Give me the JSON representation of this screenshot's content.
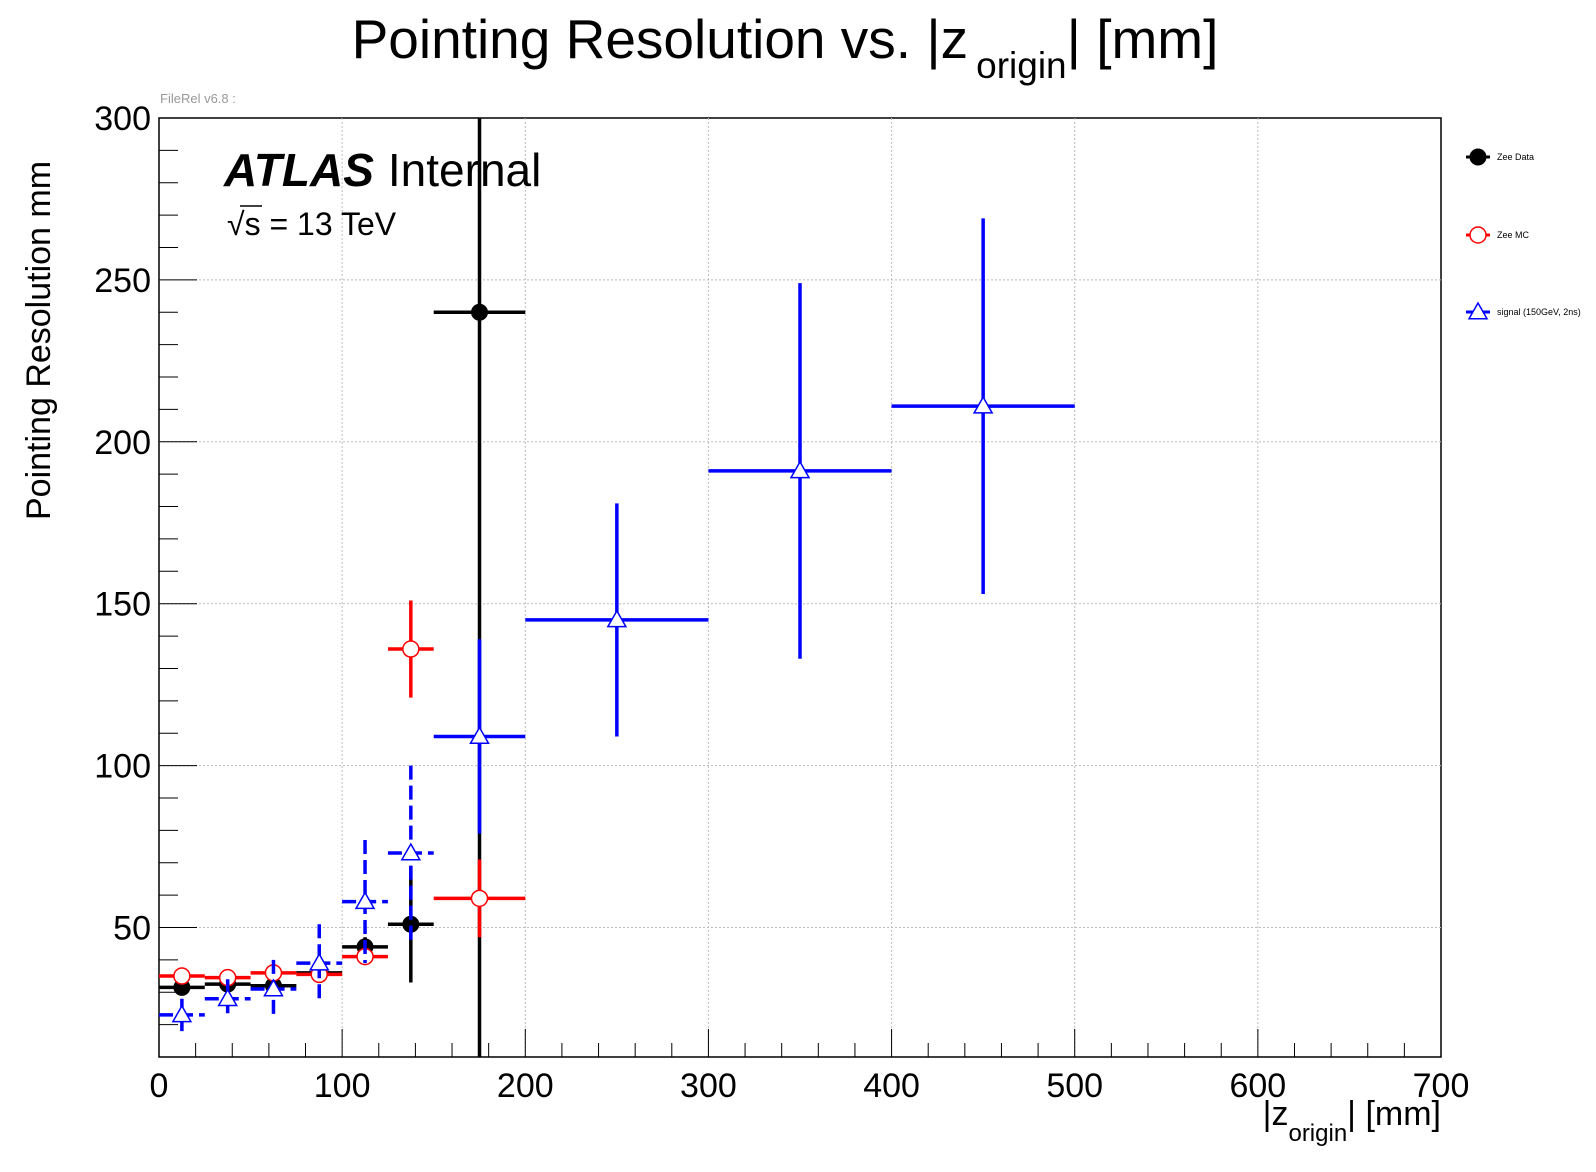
{
  "title": {
    "main": "Pointing Resolution vs. |z",
    "sub": "origin",
    "tail": "| [mm]"
  },
  "version_label": "FileRel v6.8 :",
  "atlas_label": {
    "bold": "ATLAS",
    "rest": "Internal"
  },
  "energy_label": {
    "sqrt": "√",
    "text": "s = 13 TeV"
  },
  "chart_data": {
    "type": "scatter",
    "title": "Pointing Resolution vs. |z origin| [mm]",
    "xlabel": "|z origin| [mm]",
    "ylabel": "Pointing Resolution mm",
    "xlim": [
      0,
      700
    ],
    "ylim": [
      10,
      300
    ],
    "grid": true,
    "legend_position": "right",
    "x_ticks": [
      0,
      100,
      200,
      300,
      400,
      500,
      600,
      700
    ],
    "y_ticks": [
      50,
      100,
      150,
      200,
      250,
      300
    ],
    "series": [
      {
        "name": "Zee Data",
        "color": "#000000",
        "marker": "filled-circle",
        "points": [
          {
            "x": 12.5,
            "xerr": 12.5,
            "y": 31.5,
            "yerr": 1.5
          },
          {
            "x": 37.5,
            "xerr": 12.5,
            "y": 32.5,
            "yerr": 1.5
          },
          {
            "x": 62.5,
            "xerr": 12.5,
            "y": 32,
            "yerr": 2
          },
          {
            "x": 87.5,
            "xerr": 12.5,
            "y": 36,
            "yerr": 3
          },
          {
            "x": 112.5,
            "xerr": 12.5,
            "y": 44,
            "yerr": 3
          },
          {
            "x": 137.5,
            "xerr": 12.5,
            "y": 51,
            "yerr": 18
          },
          {
            "x": 175,
            "xerr": 25,
            "y": 240,
            "yerr": 235
          }
        ]
      },
      {
        "name": "Zee MC",
        "color": "#ff0000",
        "marker": "open-circle",
        "points": [
          {
            "x": 12.5,
            "xerr": 12.5,
            "y": 35,
            "yerr": 1
          },
          {
            "x": 37.5,
            "xerr": 12.5,
            "y": 34.5,
            "yerr": 1
          },
          {
            "x": 62.5,
            "xerr": 12.5,
            "y": 36,
            "yerr": 1.5
          },
          {
            "x": 87.5,
            "xerr": 12.5,
            "y": 35.5,
            "yerr": 2
          },
          {
            "x": 112.5,
            "xerr": 12.5,
            "y": 41,
            "yerr": 2.5
          },
          {
            "x": 137.5,
            "xerr": 12.5,
            "y": 136,
            "yerr": 15
          },
          {
            "x": 175,
            "xerr": 25,
            "y": 59,
            "yerr": 12
          }
        ]
      },
      {
        "name": "signal (150GeV, 2ns)",
        "color": "#0000ff",
        "marker": "open-triangle",
        "points": [
          {
            "x": 12.5,
            "xerr": 12.5,
            "y": 23,
            "yerr": 5
          },
          {
            "x": 37.5,
            "xerr": 12.5,
            "y": 28,
            "yerr": 6
          },
          {
            "x": 62.5,
            "xerr": 12.5,
            "y": 31,
            "yerr": 9
          },
          {
            "x": 87.5,
            "xerr": 12.5,
            "y": 39,
            "yerr": 12
          },
          {
            "x": 112.5,
            "xerr": 12.5,
            "y": 58,
            "yerr": 19
          },
          {
            "x": 137.5,
            "xerr": 12.5,
            "y": 73,
            "yerr": 27
          },
          {
            "x": 175,
            "xerr": 25,
            "y": 109,
            "yerr": 30
          },
          {
            "x": 250,
            "xerr": 50,
            "y": 145,
            "yerr": 36
          },
          {
            "x": 350,
            "xerr": 50,
            "y": 191,
            "yerr": 58
          },
          {
            "x": 450,
            "xerr": 50,
            "y": 211,
            "yerr": 58
          }
        ]
      }
    ]
  }
}
